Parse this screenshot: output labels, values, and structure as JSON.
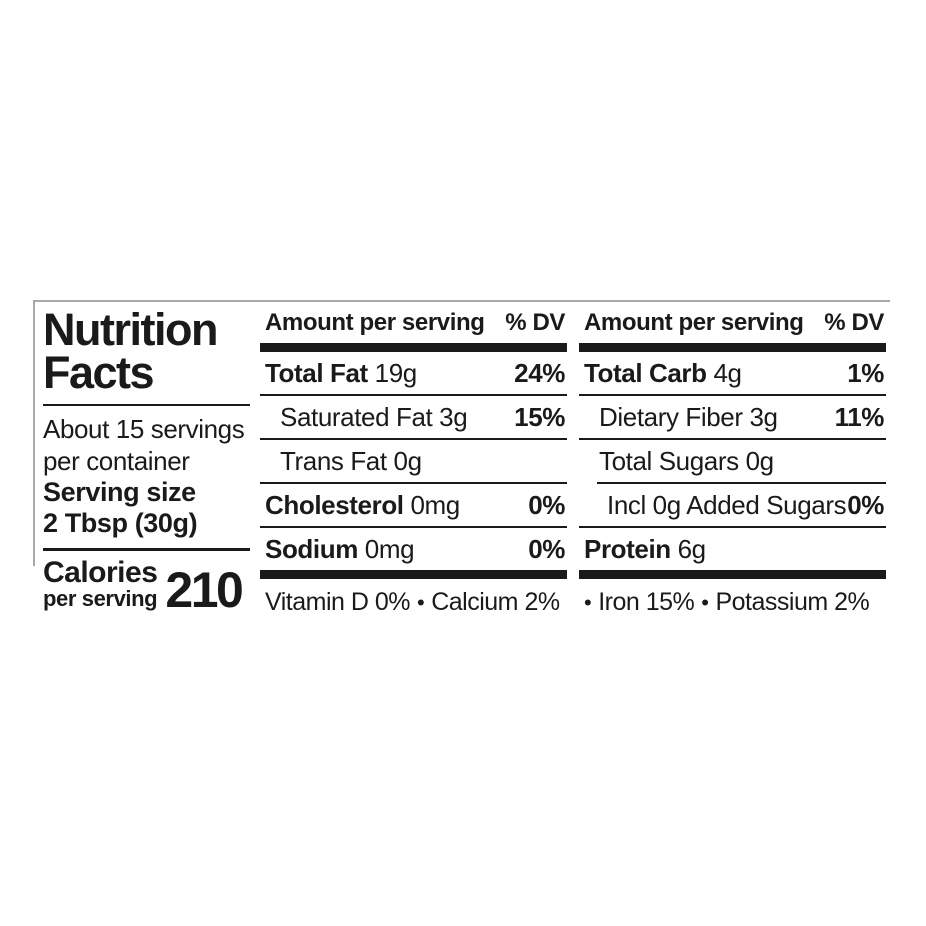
{
  "label": {
    "title": "Nutrition Facts",
    "servings_line1": "About 15 servings",
    "servings_line2": "per container",
    "serving_size_line1": "Serving size",
    "serving_size_line2": "2 Tbsp (30g)",
    "calories_label": "Calories",
    "calories_sublabel": "per serving",
    "calories_value": "210",
    "bullet": "•",
    "ink_color": "#1a1a1a",
    "frame_line_color": "#a9a9a9",
    "columns": [
      {
        "header_amount": "Amount per serving",
        "header_dv": "% DV",
        "rows": [
          {
            "name": "Total Fat",
            "value": "19g",
            "dv": "24%",
            "bold": true,
            "indent": 0,
            "sep": "none"
          },
          {
            "name": "Saturated Fat",
            "value": "3g",
            "dv": "15%",
            "bold": false,
            "indent": 1,
            "sep": "full"
          },
          {
            "name": "Trans Fat",
            "value": "0g",
            "dv": "",
            "bold": false,
            "indent": 1,
            "sep": "full"
          },
          {
            "name": "Cholesterol",
            "value": "0mg",
            "dv": "0%",
            "bold": true,
            "indent": 0,
            "sep": "full"
          },
          {
            "name": "Sodium",
            "value": "0mg",
            "dv": "0%",
            "bold": true,
            "indent": 0,
            "sep": "full"
          }
        ],
        "footer_items": [
          "Vitamin D 0%",
          "Calcium 2%"
        ],
        "footer_lead_bullet": false
      },
      {
        "header_amount": "Amount per serving",
        "header_dv": "% DV",
        "rows": [
          {
            "name": "Total Carb",
            "value": "4g",
            "dv": "1%",
            "bold": true,
            "indent": 0,
            "sep": "none"
          },
          {
            "name": "Dietary Fiber",
            "value": "3g",
            "dv": "11%",
            "bold": false,
            "indent": 1,
            "sep": "full"
          },
          {
            "name": "Total Sugars",
            "value": "0g",
            "dv": "",
            "bold": false,
            "indent": 1,
            "sep": "full"
          },
          {
            "name": "Incl 0g Added Sugars",
            "value": "",
            "dv": "0%",
            "bold": false,
            "indent": 2,
            "sep": "indent"
          },
          {
            "name": "Protein",
            "value": "6g",
            "dv": "",
            "bold": true,
            "indent": 0,
            "sep": "full"
          }
        ],
        "footer_items": [
          "Iron 15%",
          "Potassium 2%"
        ],
        "footer_lead_bullet": true
      }
    ]
  }
}
